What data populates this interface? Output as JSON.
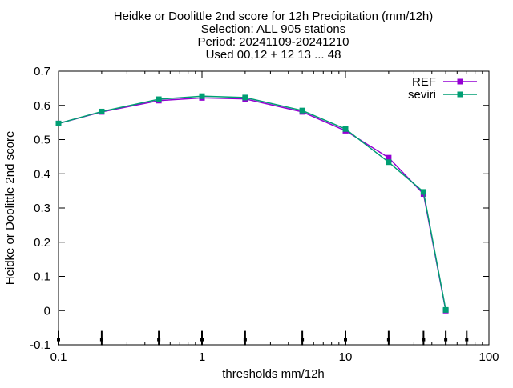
{
  "chart_data": {
    "type": "line",
    "title_lines": [
      "Heidke or Doolittle 2nd score  for 12h Precipitation (mm/12h)",
      "Selection: ALL    905 stations",
      "Period: 20241109-20241210",
      "Used 00,12 + 12 13 ... 48"
    ],
    "xlabel": "thresholds mm/12h",
    "ylabel": "Heidke or Doolittle 2nd score",
    "x_scale": "log",
    "xlim": [
      0.1,
      100
    ],
    "ylim": [
      -0.1,
      0.7
    ],
    "x_ticks": [
      0.1,
      1,
      10,
      100
    ],
    "x_tick_labels": [
      "0.1",
      "1",
      "10",
      "100"
    ],
    "y_ticks": [
      -0.1,
      0,
      0.1,
      0.2,
      0.3,
      0.4,
      0.5,
      0.6,
      0.7
    ],
    "y_tick_labels": [
      "-0.1",
      "0",
      "0.1",
      "0.2",
      "0.3",
      "0.4",
      "0.5",
      "0.6",
      "0.7"
    ],
    "grid": false,
    "legend_position": "top-right",
    "threshold_markers_x": [
      0.1,
      0.2,
      0.5,
      1,
      2,
      5,
      10,
      20,
      35,
      50,
      70
    ],
    "series": [
      {
        "name": "REF",
        "color": "#9400d3",
        "x": [
          0.1,
          0.2,
          0.5,
          1,
          2,
          5,
          10,
          20,
          35,
          50
        ],
        "y": [
          0.547,
          0.581,
          0.614,
          0.622,
          0.619,
          0.581,
          0.526,
          0.447,
          0.341,
          0.0
        ]
      },
      {
        "name": "seviri",
        "color": "#009e73",
        "x": [
          0.1,
          0.2,
          0.5,
          1,
          2,
          5,
          10,
          20,
          35,
          50
        ],
        "y": [
          0.547,
          0.582,
          0.618,
          0.627,
          0.623,
          0.585,
          0.531,
          0.434,
          0.347,
          0.002
        ]
      }
    ]
  }
}
